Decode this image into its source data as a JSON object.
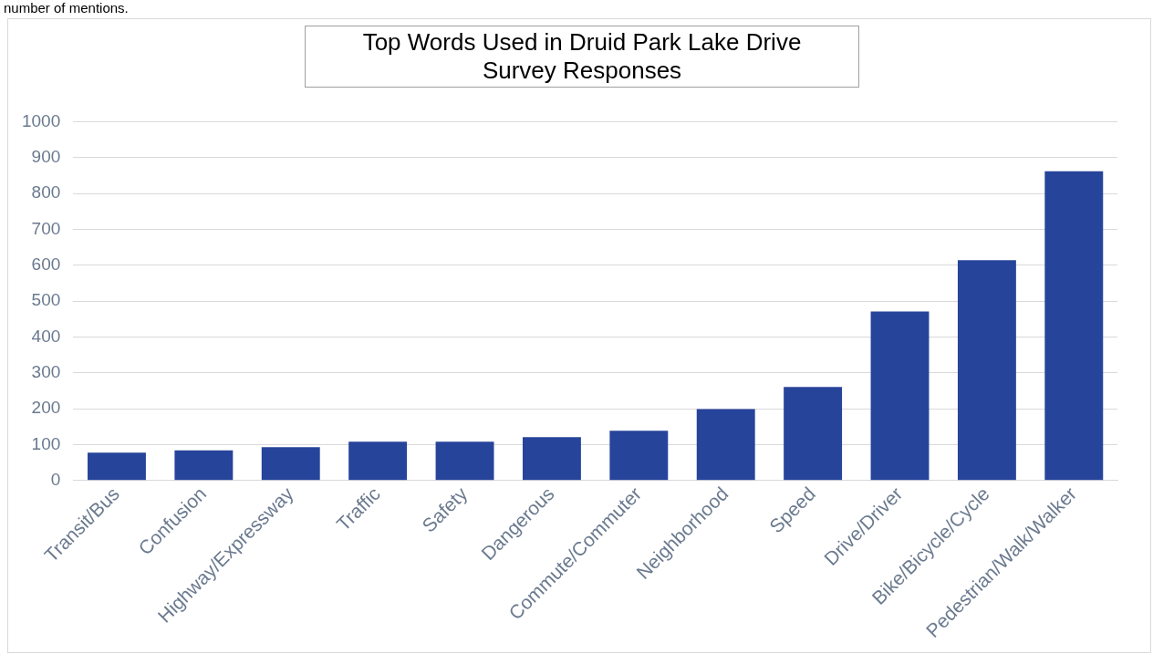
{
  "chart_data": {
    "type": "bar",
    "title": [
      "Top Words Used in Druid Park Lake Drive",
      "Survey Responses"
    ],
    "annotations": [
      "number of mentions."
    ],
    "categories": [
      "Transit/Bus",
      "Confusion",
      "Highway/Expressway",
      "Traffic",
      "Safety",
      "Dangerous",
      "Commute/Commuter",
      "Neighborhood",
      "Speed",
      "Drive/Driver",
      "Bike/Bicycle/Cycle",
      "Pedestrian/Walk/Walker"
    ],
    "values": [
      78,
      84,
      93,
      108,
      108,
      121,
      139,
      199,
      261,
      471,
      614,
      862
    ],
    "color": "#27449b",
    "ylim": [
      0,
      1000
    ],
    "yticks": [
      0,
      100,
      200,
      300,
      400,
      500,
      600,
      700,
      800,
      900,
      1000
    ],
    "grid": "y",
    "legend": false
  }
}
